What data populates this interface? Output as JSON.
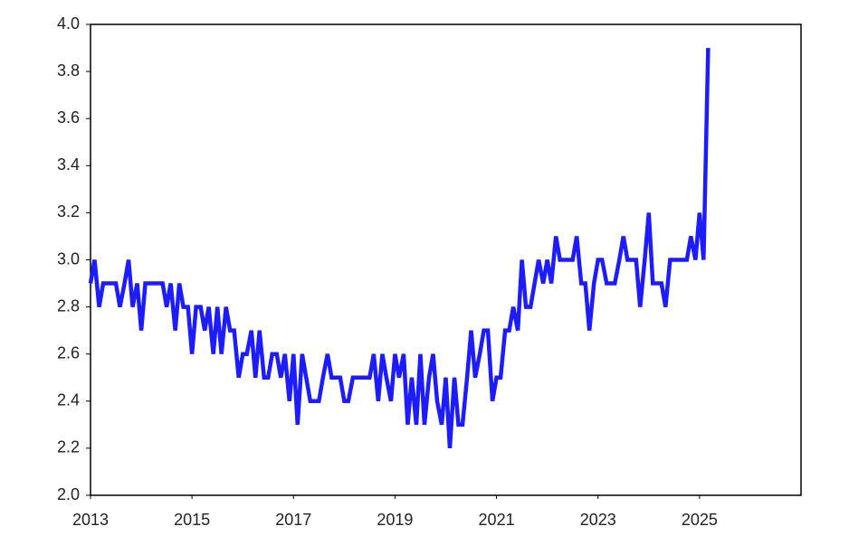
{
  "chart_data": {
    "type": "line",
    "x": [
      2013,
      2013.08,
      2013.17,
      2013.25,
      2013.33,
      2013.42,
      2013.5,
      2013.58,
      2013.67,
      2013.75,
      2013.83,
      2013.92,
      2014,
      2014.08,
      2014.17,
      2014.25,
      2014.33,
      2014.42,
      2014.5,
      2014.58,
      2014.67,
      2014.75,
      2014.83,
      2014.92,
      2015,
      2015.08,
      2015.17,
      2015.25,
      2015.33,
      2015.42,
      2015.5,
      2015.58,
      2015.67,
      2015.75,
      2015.83,
      2015.92,
      2016,
      2016.08,
      2016.17,
      2016.25,
      2016.33,
      2016.42,
      2016.5,
      2016.58,
      2016.67,
      2016.75,
      2016.83,
      2016.92,
      2017,
      2017.08,
      2017.17,
      2017.25,
      2017.33,
      2017.42,
      2017.5,
      2017.58,
      2017.67,
      2017.75,
      2017.83,
      2017.92,
      2018,
      2018.08,
      2018.17,
      2018.25,
      2018.33,
      2018.42,
      2018.5,
      2018.58,
      2018.67,
      2018.75,
      2018.83,
      2018.92,
      2019,
      2019.08,
      2019.17,
      2019.25,
      2019.33,
      2019.42,
      2019.5,
      2019.58,
      2019.67,
      2019.75,
      2019.83,
      2019.92,
      2020,
      2020.08,
      2020.17,
      2020.25,
      2020.33,
      2020.42,
      2020.5,
      2020.58,
      2020.67,
      2020.75,
      2020.83,
      2020.92,
      2021,
      2021.08,
      2021.17,
      2021.25,
      2021.33,
      2021.42,
      2021.5,
      2021.58,
      2021.67,
      2021.75,
      2021.83,
      2021.92,
      2022,
      2022.08,
      2022.17,
      2022.25,
      2022.33,
      2022.42,
      2022.5,
      2022.58,
      2022.67,
      2022.75,
      2022.83,
      2022.92,
      2023,
      2023.08,
      2023.17,
      2023.25,
      2023.33,
      2023.42,
      2023.5,
      2023.58,
      2023.67,
      2023.75,
      2023.83,
      2023.92,
      2024,
      2024.08,
      2024.17,
      2024.25,
      2024.33,
      2024.42,
      2024.5,
      2024.58,
      2024.67,
      2024.75,
      2024.83,
      2024.92,
      2025,
      2025.08,
      2025.17
    ],
    "series": [
      {
        "color": "#1c1cff",
        "values": [
          2.9,
          3.0,
          2.8,
          2.9,
          2.9,
          2.9,
          2.9,
          2.8,
          2.9,
          3.0,
          2.8,
          2.9,
          2.7,
          2.9,
          2.9,
          2.9,
          2.9,
          2.9,
          2.8,
          2.9,
          2.7,
          2.9,
          2.8,
          2.8,
          2.6,
          2.8,
          2.8,
          2.7,
          2.8,
          2.6,
          2.8,
          2.6,
          2.8,
          2.7,
          2.7,
          2.5,
          2.6,
          2.6,
          2.7,
          2.5,
          2.7,
          2.5,
          2.5,
          2.6,
          2.6,
          2.5,
          2.6,
          2.4,
          2.6,
          2.3,
          2.6,
          2.5,
          2.4,
          2.4,
          2.4,
          2.5,
          2.6,
          2.5,
          2.5,
          2.5,
          2.4,
          2.4,
          2.5,
          2.5,
          2.5,
          2.5,
          2.5,
          2.6,
          2.4,
          2.6,
          2.5,
          2.4,
          2.6,
          2.5,
          2.6,
          2.3,
          2.5,
          2.3,
          2.6,
          2.3,
          2.5,
          2.6,
          2.4,
          2.3,
          2.5,
          2.2,
          2.5,
          2.3,
          2.3,
          2.5,
          2.7,
          2.5,
          2.6,
          2.7,
          2.7,
          2.4,
          2.5,
          2.5,
          2.7,
          2.7,
          2.8,
          2.7,
          3.0,
          2.8,
          2.8,
          2.9,
          3.0,
          2.9,
          3.0,
          2.9,
          3.1,
          3.0,
          3.0,
          3.0,
          3.0,
          3.1,
          2.9,
          2.9,
          2.7,
          2.9,
          3.0,
          3.0,
          2.9,
          2.9,
          2.9,
          3.0,
          3.1,
          3.0,
          3.0,
          3.0,
          2.8,
          3.0,
          3.2,
          2.9,
          2.9,
          2.9,
          2.8,
          3.0,
          3.0,
          3.0,
          3.0,
          3.0,
          3.1,
          3.0,
          3.2,
          3.0,
          3.9
        ]
      }
    ],
    "xlim": [
      2013,
      2027
    ],
    "xticks": [
      2013,
      2015,
      2017,
      2019,
      2021,
      2023,
      2025
    ],
    "ylim": [
      2,
      4
    ],
    "yticks": [
      {
        "value": 2,
        "label": "2.0"
      },
      2.2,
      2.4,
      2.6,
      2.8,
      {
        "value": 3,
        "label": "3.0"
      },
      3.2,
      3.4,
      3.6,
      3.8,
      {
        "value": 4,
        "label": "4.0"
      }
    ]
  }
}
